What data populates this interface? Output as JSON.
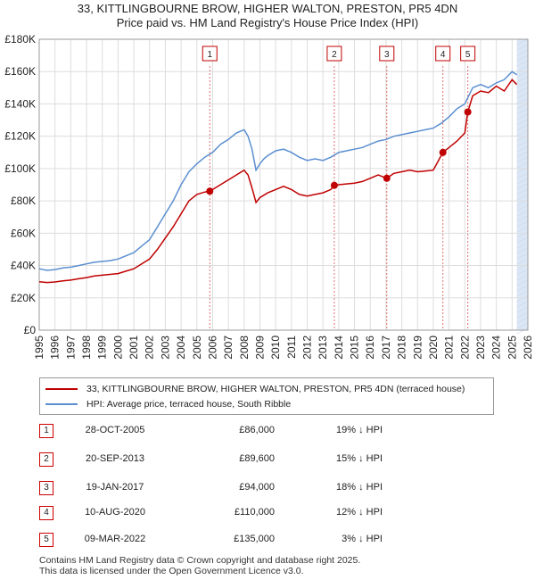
{
  "title": {
    "line1": "33, KITTLINGBOURNE BROW, HIGHER WALTON, PRESTON, PR5 4DN",
    "line2": "Price paid vs. HM Land Registry's House Price Index (HPI)"
  },
  "chart_data": {
    "type": "line",
    "ylim": [
      0,
      180000
    ],
    "xlim": [
      1995,
      2026
    ],
    "y_ticks": [
      {
        "value": 0,
        "label": "£0"
      },
      {
        "value": 20000,
        "label": "£20K"
      },
      {
        "value": 40000,
        "label": "£40K"
      },
      {
        "value": 60000,
        "label": "£60K"
      },
      {
        "value": 80000,
        "label": "£80K"
      },
      {
        "value": 100000,
        "label": "£100K"
      },
      {
        "value": 120000,
        "label": "£120K"
      },
      {
        "value": 140000,
        "label": "£140K"
      },
      {
        "value": 160000,
        "label": "£160K"
      },
      {
        "value": 180000,
        "label": "£180K"
      }
    ],
    "x_ticks": [
      "1995",
      "1996",
      "1997",
      "1998",
      "1999",
      "2000",
      "2001",
      "2002",
      "2003",
      "2004",
      "2005",
      "2006",
      "2007",
      "2008",
      "2009",
      "2010",
      "2011",
      "2012",
      "2013",
      "2014",
      "2015",
      "2016",
      "2017",
      "2018",
      "2019",
      "2020",
      "2021",
      "2022",
      "2023",
      "2024",
      "2025",
      "2026"
    ],
    "colors": {
      "hpi": "#5b8fd0",
      "price": "#c00000",
      "band": "#dbe6f5",
      "grid": "#dddddd"
    },
    "series": [
      {
        "name": "HPI",
        "x": [
          1995.0,
          1995.5,
          1996.0,
          1996.5,
          1997.0,
          1997.5,
          1998.0,
          1998.5,
          1999.0,
          1999.5,
          2000.0,
          2000.5,
          2001.0,
          2001.5,
          2002.0,
          2002.5,
          2003.0,
          2003.5,
          2004.0,
          2004.5,
          2005.0,
          2005.5,
          2006.0,
          2006.5,
          2007.0,
          2007.5,
          2008.0,
          2008.25,
          2008.5,
          2008.75,
          2009.0,
          2009.25,
          2009.5,
          2010.0,
          2010.5,
          2011.0,
          2011.5,
          2012.0,
          2012.5,
          2013.0,
          2013.5,
          2014.0,
          2014.5,
          2015.0,
          2015.5,
          2016.0,
          2016.5,
          2017.0,
          2017.5,
          2018.0,
          2018.5,
          2019.0,
          2019.5,
          2020.0,
          2020.5,
          2021.0,
          2021.5,
          2022.0,
          2022.5,
          2023.0,
          2023.5,
          2024.0,
          2024.5,
          2025.0,
          2025.3
        ],
        "values": [
          38000,
          37000,
          37500,
          38500,
          39000,
          40000,
          41000,
          42000,
          42500,
          43000,
          44000,
          46000,
          48000,
          52000,
          56000,
          64000,
          72000,
          80000,
          90000,
          98000,
          103000,
          107000,
          110000,
          115000,
          118000,
          122000,
          124000,
          120000,
          112000,
          99000,
          103000,
          106000,
          108000,
          111000,
          112000,
          110000,
          107000,
          105000,
          106000,
          105000,
          107000,
          110000,
          111000,
          112000,
          113000,
          115000,
          117000,
          118000,
          120000,
          121000,
          122000,
          123000,
          124000,
          125000,
          128000,
          132000,
          137000,
          140000,
          150000,
          152000,
          150000,
          153000,
          155000,
          160000,
          158000
        ]
      },
      {
        "name": "Price paid",
        "x": [
          1995.0,
          1995.5,
          1996.0,
          1996.5,
          1997.0,
          1997.5,
          1998.0,
          1998.5,
          1999.0,
          1999.5,
          2000.0,
          2000.5,
          2001.0,
          2001.5,
          2002.0,
          2002.5,
          2003.0,
          2003.5,
          2004.0,
          2004.5,
          2005.0,
          2005.5,
          2005.82,
          2006.0,
          2006.5,
          2007.0,
          2007.5,
          2008.0,
          2008.25,
          2008.5,
          2008.75,
          2009.0,
          2009.5,
          2010.0,
          2010.5,
          2011.0,
          2011.5,
          2012.0,
          2012.5,
          2013.0,
          2013.5,
          2013.72,
          2014.0,
          2014.5,
          2015.0,
          2015.5,
          2016.0,
          2016.5,
          2017.05,
          2017.5,
          2018.0,
          2018.5,
          2019.0,
          2019.5,
          2020.0,
          2020.61,
          2021.0,
          2021.5,
          2022.0,
          2022.19,
          2022.5,
          2023.0,
          2023.5,
          2024.0,
          2024.5,
          2025.0,
          2025.3
        ],
        "values": [
          30000,
          29500,
          29800,
          30500,
          31000,
          31800,
          32500,
          33500,
          34000,
          34500,
          35000,
          36500,
          38000,
          41000,
          44000,
          50000,
          57000,
          64000,
          72000,
          80000,
          84000,
          85500,
          86000,
          87000,
          90000,
          93000,
          96000,
          99000,
          96000,
          88000,
          79000,
          82000,
          85000,
          87000,
          89000,
          87000,
          84000,
          83000,
          84000,
          85000,
          87000,
          89600,
          90000,
          90500,
          91000,
          92000,
          94000,
          96000,
          94000,
          97000,
          98000,
          99000,
          98000,
          98500,
          99000,
          110000,
          113000,
          117000,
          122000,
          135000,
          145000,
          148000,
          147000,
          151000,
          148000,
          155000,
          152000
        ]
      }
    ],
    "sales": [
      {
        "n": "1",
        "x": 2005.82,
        "value": 86000
      },
      {
        "n": "2",
        "x": 2013.72,
        "value": 89600
      },
      {
        "n": "3",
        "x": 2017.05,
        "value": 94000
      },
      {
        "n": "4",
        "x": 2020.61,
        "value": 110000
      },
      {
        "n": "5",
        "x": 2022.19,
        "value": 135000
      }
    ],
    "shade_from": 2025.3
  },
  "legend": {
    "price_label": "33, KITTLINGBOURNE BROW, HIGHER WALTON, PRESTON, PR5 4DN (terraced house)",
    "hpi_label": "HPI: Average price, terraced house, South Ribble"
  },
  "transactions": [
    {
      "n": "1",
      "date": "28-OCT-2005",
      "price": "£86,000",
      "hpi": "19% ↓ HPI"
    },
    {
      "n": "2",
      "date": "20-SEP-2013",
      "price": "£89,600",
      "hpi": "15% ↓ HPI"
    },
    {
      "n": "3",
      "date": "19-JAN-2017",
      "price": "£94,000",
      "hpi": "18% ↓ HPI"
    },
    {
      "n": "4",
      "date": "10-AUG-2020",
      "price": "£110,000",
      "hpi": "12% ↓ HPI"
    },
    {
      "n": "5",
      "date": "09-MAR-2022",
      "price": "£135,000",
      "hpi": "3% ↓ HPI"
    }
  ],
  "footer": {
    "line1": "Contains HM Land Registry data © Crown copyright and database right 2025.",
    "line2": "This data is licensed under the Open Government Licence v3.0."
  }
}
